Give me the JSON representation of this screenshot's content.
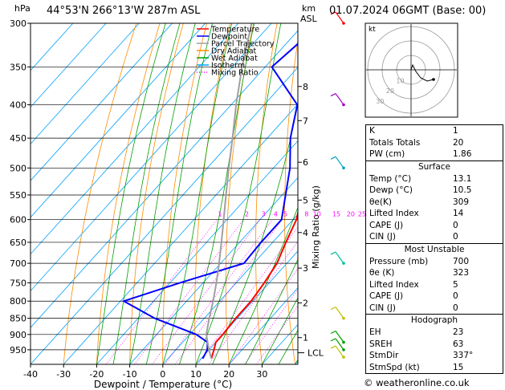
{
  "header": {
    "hpa_label": "hPa",
    "location": "44°53'N 266°13'W 287m ASL",
    "km_label": "km",
    "asl_label": "ASL",
    "datetime": "01.07.2024 06GMT (Base: 00)"
  },
  "axes": {
    "xlabel": "Dewpoint / Temperature (°C)",
    "mixing_ratio_label": "Mixing Ratio (g/kg)",
    "lcl_label": "LCL"
  },
  "legend": [
    {
      "label": "Temperature",
      "color": "#ff0000"
    },
    {
      "label": "Dewpoint",
      "color": "#0000ff"
    },
    {
      "label": "Parcel Trajectory",
      "color": "#a0a0a0"
    },
    {
      "label": "Dry Adiabat",
      "color": "#ff8c00"
    },
    {
      "label": "Wet Adiabat",
      "color": "#00a000"
    },
    {
      "label": "Isotherm",
      "color": "#00a0ff"
    },
    {
      "label": "Mixing Ratio",
      "color": "#ff00ff"
    }
  ],
  "chart_data": {
    "type": "line",
    "subtype": "skew-T log-P",
    "x_ticks": [
      -40,
      -30,
      -20,
      -10,
      0,
      10,
      20,
      30
    ],
    "pressure_ticks": [
      300,
      350,
      400,
      450,
      500,
      550,
      600,
      650,
      700,
      750,
      800,
      850,
      900,
      950
    ],
    "km_ticks": [
      {
        "label": "8",
        "p": 375
      },
      {
        "label": "7",
        "p": 423
      },
      {
        "label": "6",
        "p": 490
      },
      {
        "label": "5",
        "p": 560
      },
      {
        "label": "4",
        "p": 628
      },
      {
        "label": "3",
        "p": 712
      },
      {
        "label": "2",
        "p": 805
      },
      {
        "label": "1",
        "p": 910
      }
    ],
    "mixing_ratio_labels": [
      "1",
      "2",
      "3",
      "4",
      "5",
      "8",
      "10",
      "15",
      "20",
      "25"
    ],
    "mixing_ratio_values": [
      1,
      2,
      3,
      4,
      5,
      8,
      10,
      15,
      20,
      25
    ],
    "series": [
      {
        "name": "Temperature",
        "color": "#ff0000",
        "points": [
          [
            980,
            13.1
          ],
          [
            950,
            11.5
          ],
          [
            925,
            10.0
          ],
          [
            900,
            10.0
          ],
          [
            850,
            9.5
          ],
          [
            800,
            9.5
          ],
          [
            750,
            8.5
          ],
          [
            700,
            7.0
          ],
          [
            650,
            4.0
          ],
          [
            600,
            1.0
          ],
          [
            550,
            -4.0
          ],
          [
            500,
            -9.5
          ],
          [
            450,
            -15.0
          ],
          [
            400,
            -22.0
          ],
          [
            350,
            -29.0
          ],
          [
            300,
            -37.0
          ]
        ]
      },
      {
        "name": "Dewpoint",
        "color": "#0000ff",
        "points": [
          [
            980,
            10.5
          ],
          [
            950,
            9.5
          ],
          [
            925,
            7.5
          ],
          [
            900,
            2.0
          ],
          [
            850,
            -15.0
          ],
          [
            800,
            -29.0
          ],
          [
            750,
            -17.0
          ],
          [
            700,
            -3.0
          ],
          [
            650,
            -3.5
          ],
          [
            600,
            -3.5
          ],
          [
            550,
            -9.0
          ],
          [
            500,
            -15.0
          ],
          [
            450,
            -23.0
          ],
          [
            400,
            -30.0
          ],
          [
            350,
            -48.0
          ],
          [
            300,
            -45.0
          ]
        ]
      },
      {
        "name": "Parcel Trajectory",
        "color": "#a0a0a0",
        "points": [
          [
            980,
            13.1
          ],
          [
            950,
            10.0
          ],
          [
            900,
            5.0
          ],
          [
            850,
            1.5
          ],
          [
            800,
            -2.0
          ],
          [
            750,
            -6.0
          ],
          [
            700,
            -10.5
          ],
          [
            650,
            -15.5
          ],
          [
            600,
            -21.0
          ],
          [
            550,
            -27.0
          ],
          [
            500,
            -33.5
          ],
          [
            450,
            -40.5
          ],
          [
            400,
            -48.5
          ],
          [
            350,
            -57.0
          ],
          [
            300,
            -66.0
          ]
        ]
      }
    ],
    "lcl_pressure": 960,
    "xlim": [
      -40,
      35
    ],
    "plim": [
      300,
      1000
    ]
  },
  "hodograph": {
    "label": "kt",
    "ring_labels": [
      "10",
      "20",
      "30"
    ]
  },
  "indices": {
    "k_label": "K",
    "k_value": "1",
    "tt_label": "Totals Totals",
    "tt_value": "20",
    "pw_label": "PW (cm)",
    "pw_value": "1.86"
  },
  "surface": {
    "title": "Surface",
    "rows": [
      {
        "k": "Temp (°C)",
        "v": "13.1"
      },
      {
        "k": "Dewp (°C)",
        "v": "10.5"
      },
      {
        "k": "θe(K)",
        "v": "309"
      },
      {
        "k": "Lifted Index",
        "v": "14"
      },
      {
        "k": "CAPE (J)",
        "v": "0"
      },
      {
        "k": "CIN (J)",
        "v": "0"
      }
    ]
  },
  "unstable": {
    "title": "Most Unstable",
    "rows": [
      {
        "k": "Pressure (mb)",
        "v": "700"
      },
      {
        "k": "θe (K)",
        "v": "323"
      },
      {
        "k": "Lifted Index",
        "v": "5"
      },
      {
        "k": "CAPE (J)",
        "v": "0"
      },
      {
        "k": "CIN (J)",
        "v": "0"
      }
    ]
  },
  "hodo_table": {
    "title": "Hodograph",
    "rows": [
      {
        "k": "EH",
        "v": "23"
      },
      {
        "k": "SREH",
        "v": "63"
      },
      {
        "k": "StmDir",
        "v": "337°"
      },
      {
        "k": "StmSpd (kt)",
        "v": "15"
      }
    ]
  },
  "footer": "© weatheronline.co.uk"
}
